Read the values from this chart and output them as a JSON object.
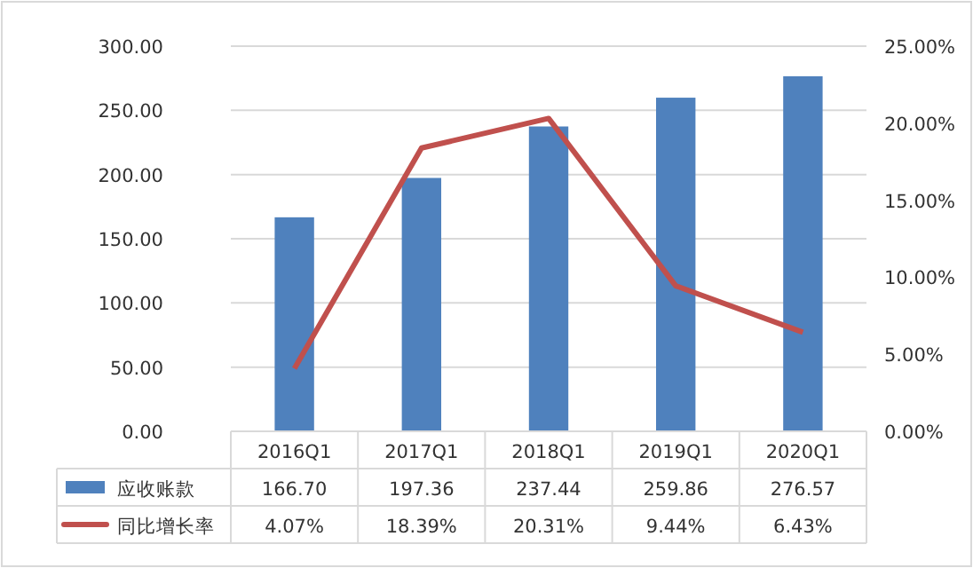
{
  "chart_data": {
    "type": "bar",
    "categories": [
      "2016Q1",
      "2017Q1",
      "2018Q1",
      "2019Q1",
      "2020Q1"
    ],
    "series": [
      {
        "name": "应收账款",
        "color": "#4f81bd",
        "values": [
          166.7,
          197.36,
          237.44,
          259.86,
          276.57
        ],
        "value_labels": [
          "166.70",
          "197.36",
          "237.44",
          "259.86",
          "276.57"
        ]
      },
      {
        "name": "同比增长率",
        "type": "line",
        "axis": "y2",
        "color": "#c0504d",
        "values": [
          4.07,
          18.39,
          20.31,
          9.44,
          6.43
        ],
        "value_labels": [
          "4.07%",
          "18.39%",
          "20.31%",
          "9.44%",
          "6.43%"
        ]
      }
    ],
    "ylim": [
      0,
      300
    ],
    "yticks": [
      {
        "value": 0,
        "label": "0.00"
      },
      {
        "value": 50,
        "label": "50.00"
      },
      {
        "value": 100,
        "label": "100.00"
      },
      {
        "value": 150,
        "label": "150.00"
      },
      {
        "value": 200,
        "label": "200.00"
      },
      {
        "value": 250,
        "label": "250.00"
      },
      {
        "value": 300,
        "label": "300.00"
      }
    ],
    "y2lim": [
      0,
      25
    ],
    "y2ticks": [
      {
        "value": 0,
        "label": "0.00%"
      },
      {
        "value": 5,
        "label": "5.00%"
      },
      {
        "value": 10,
        "label": "10.00%"
      },
      {
        "value": 15,
        "label": "15.00%"
      },
      {
        "value": 20,
        "label": "20.00%"
      },
      {
        "value": 25,
        "label": "25.00%"
      }
    ],
    "grid": "y",
    "legend": "bottom"
  }
}
